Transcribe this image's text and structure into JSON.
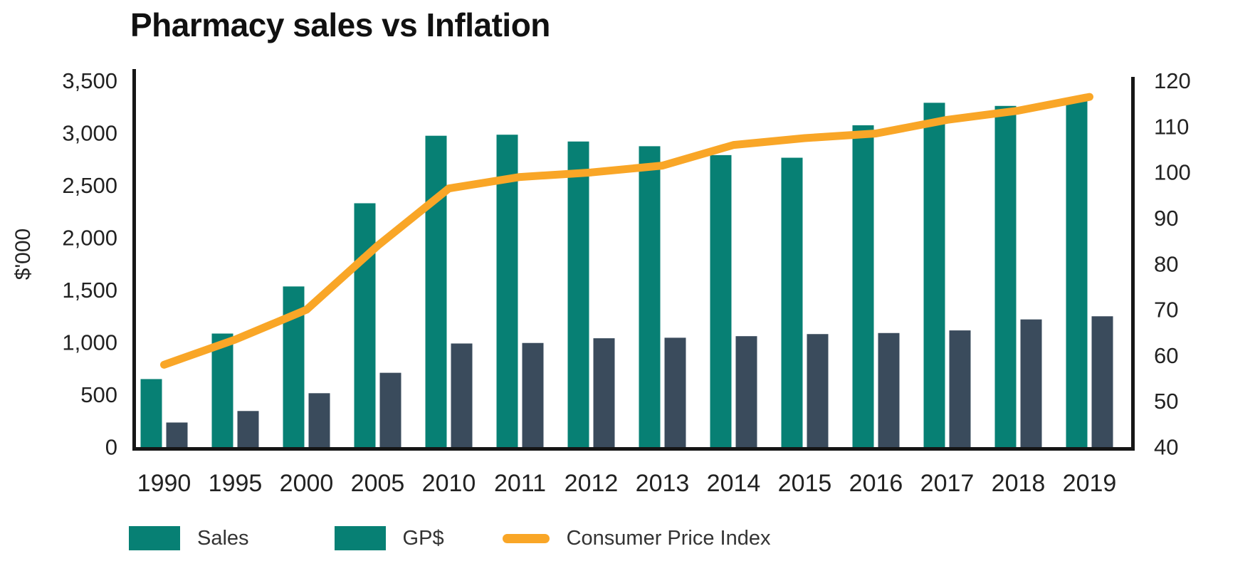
{
  "chart": {
    "title": "Pharmacy sales vs Inflation",
    "left_axis_title": "$'000"
  },
  "legend": {
    "sales": "Sales",
    "gp": "GP$",
    "cpi": "Consumer Price Index"
  },
  "colors": {
    "sales_bar": "#078074",
    "gp_bar": "#3a4b5c",
    "cpi_line": "#f9a627",
    "legend_sales_swatch": "#078074",
    "legend_gp_swatch": "#078074",
    "axis": "#161616",
    "tick_text": "#222222"
  },
  "chart_data": {
    "type": "combo",
    "title": "Pharmacy sales vs Inflation",
    "categories": [
      "1990",
      "1995",
      "2000",
      "2005",
      "2010",
      "2011",
      "2012",
      "2013",
      "2014",
      "2015",
      "2016",
      "2017",
      "2018",
      "2019"
    ],
    "series": [
      {
        "name": "Sales",
        "type": "bar",
        "axis": "left",
        "color": "#078074",
        "values": [
          650,
          1085,
          1535,
          2330,
          2975,
          2985,
          2920,
          2875,
          2790,
          2765,
          3075,
          3290,
          3260,
          3330
        ]
      },
      {
        "name": "GP$",
        "type": "bar",
        "axis": "left",
        "color": "#3a4b5c",
        "values": [
          235,
          345,
          515,
          710,
          990,
          995,
          1040,
          1045,
          1060,
          1080,
          1090,
          1115,
          1220,
          1250
        ]
      },
      {
        "name": "Consumer Price Index",
        "type": "line",
        "axis": "right",
        "color": "#f9a627",
        "values": [
          58,
          63.5,
          70,
          84,
          96.5,
          99,
          100,
          101.5,
          106,
          107.5,
          108.5,
          111.5,
          113.5,
          116.5
        ]
      }
    ],
    "left_axis": {
      "label": "$'000",
      "min": 0,
      "max": 3500,
      "tick_step": 500,
      "tick_labels": [
        "0",
        "500",
        "1,000",
        "1,500",
        "2,000",
        "2,500",
        "3,000",
        "3,500"
      ]
    },
    "right_axis": {
      "min": 40,
      "max": 120,
      "tick_step": 10,
      "tick_labels": [
        "40",
        "50",
        "60",
        "70",
        "80",
        "90",
        "100",
        "110",
        "120"
      ]
    },
    "grid": false,
    "legend_position": "bottom"
  }
}
